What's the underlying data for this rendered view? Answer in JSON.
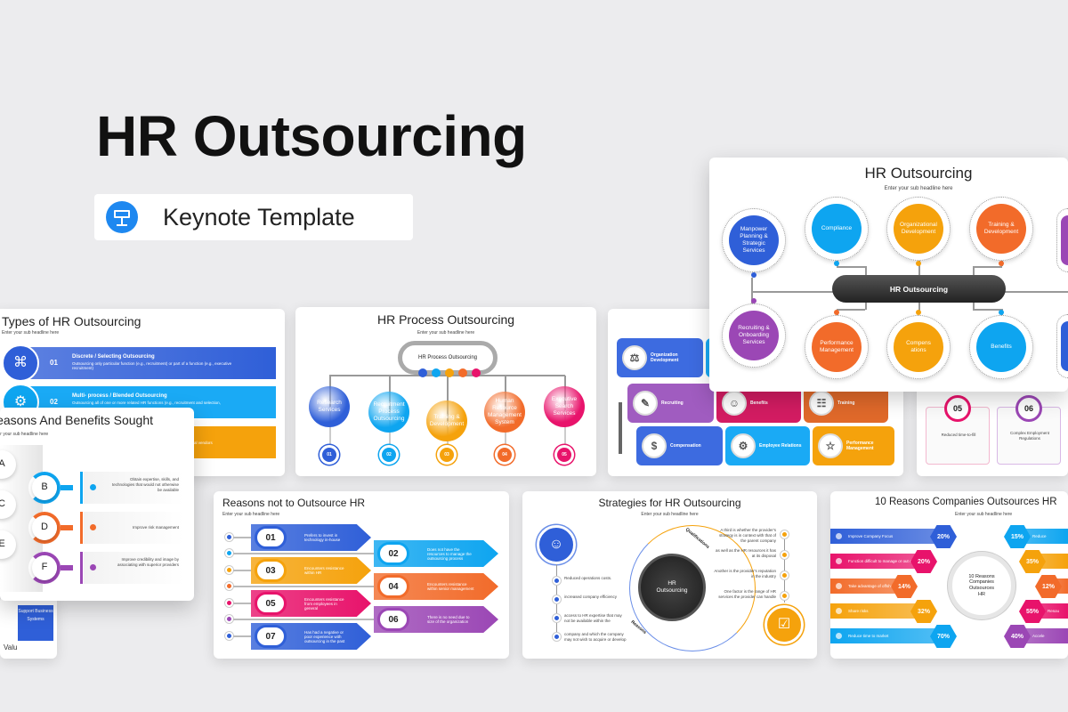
{
  "hero": {
    "title": "HR Outsourcing",
    "badge_label": "Keynote Template",
    "badge_icon": "keynote-podium-icon",
    "badge_color": "#1e88f0"
  },
  "colors": {
    "blue": "#2f5fd8",
    "light_blue": "#0ea5f0",
    "orange": "#f5a20c",
    "deep_orange": "#f26b2a",
    "pink": "#e8136b",
    "purple": "#9b47b5",
    "dark": "#333333"
  },
  "sub_headline": "Enter your sub headline here",
  "main_slide": {
    "title": "HR Outsourcing",
    "center": "HR Outsourcing",
    "top": [
      "Manpower Planning & Strategic Services",
      "Compliance",
      "Organizational Development",
      "Training & Development"
    ],
    "bottom": [
      "Recruiting & Onboarding Services",
      "Performance Management",
      "Compens ations",
      "Benefits"
    ]
  },
  "types_slide": {
    "title": "Types of HR Outsourcing",
    "items": [
      {
        "num": "01",
        "title": "Discrete / Selecting Outsourcing",
        "desc": "Outsourcing only particular function (e.g., recruitment) or part of a function (e.g., executive recruitment)"
      },
      {
        "num": "02",
        "title": "Multi- process / Blended Outsourcing",
        "desc": "Outsourcing all of one or more related HR functions (e.g., recruitment and selection,"
      },
      {
        "desc": "rnal vendors"
      }
    ]
  },
  "benefits_slide": {
    "title": "Reasons And Benefits Sought",
    "letters": [
      "A",
      "C",
      "E"
    ],
    "items": [
      {
        "letter": "B",
        "text": "Obtain expertise, skills, and technologies that would not otherwise be available"
      },
      {
        "letter": "D",
        "text": "Improve risk management"
      },
      {
        "letter": "F",
        "text": "Improve credibility and image by associating with superior providers"
      }
    ]
  },
  "process_slide": {
    "title": "HR Process Outsourcing",
    "center": "HR Process Outsourcing",
    "items": [
      {
        "label": "Research Services",
        "num": "01"
      },
      {
        "label": "Recruitment Process Outsourcing",
        "num": "02"
      },
      {
        "label": "Training & Development",
        "num": "03"
      },
      {
        "label": "Human Resource Management System",
        "num": "04"
      },
      {
        "label": "Executive Search Services",
        "num": "05"
      }
    ]
  },
  "flow_slide": {
    "tiles": [
      "Organization Development",
      "Recruiting",
      "Benefits",
      "Training",
      "Compensation",
      "Employee Relations",
      "Performance Management"
    ]
  },
  "cards_slide": {
    "cards": [
      {
        "num": "05",
        "text": "Reduced time-to-fill"
      },
      {
        "num": "06",
        "text": "Complex Employment Regulations"
      }
    ]
  },
  "partial_slide": {
    "box": "Support Business Systems",
    "vertical": "Valu"
  },
  "reasons_not_slide": {
    "title": "Reasons not to Outsource HR",
    "items": [
      {
        "num": "01",
        "text": "Prefers to invest in technology in-house"
      },
      {
        "num": "02",
        "text": "Does not have the resources to manage the outsourcing process"
      },
      {
        "num": "03",
        "text": "Encounters resistance within HR"
      },
      {
        "num": "04",
        "text": "Encounters resistance within senior management"
      },
      {
        "num": "05",
        "text": "Encounters resistance from employees in general"
      },
      {
        "num": "06",
        "text": "There is no need due to size of the organization"
      },
      {
        "num": "07",
        "text": "Has had a negative or poor experience with outsourcing in the past"
      }
    ]
  },
  "strategies_slide": {
    "title": "Strategies for HR Outsourcing",
    "center": "HR Outsourcing",
    "arc_top": "Qualifications",
    "arc_bottom": "Reasons",
    "left": [
      "Reduced operations costs.",
      "increased company efficiency",
      "access to HR expertise that may not be available within the",
      "company and which the company may not wish to acquire or develop"
    ],
    "right": [
      "A third is whether the provider's strategy is in context with that of the parent company",
      "as well as the HR resources it has at its disposal",
      "Another is the provider's reputation in the industry",
      "One factor is the range of HR services the provider can handle"
    ]
  },
  "ten_reasons_slide": {
    "title": "10 Reasons Companies Outsources HR",
    "center": "10 Reasons Companies Outsources HR",
    "left": [
      {
        "text": "Improve Company Focus",
        "pct": "20%"
      },
      {
        "text": "Function difficult to manage or out of control",
        "pct": "20%"
      },
      {
        "text": "Take advantage of offshore capabilities",
        "pct": "14%"
      },
      {
        "text": "Share risks",
        "pct": "32%"
      },
      {
        "text": "Reduce time to market",
        "pct": "70%"
      }
    ],
    "right": [
      {
        "text": "Reduce",
        "pct": "15%"
      },
      {
        "text": "",
        "pct": "35%"
      },
      {
        "text": "",
        "pct": "12%"
      },
      {
        "text": "Resou",
        "pct": "55%"
      },
      {
        "text": "Accele",
        "pct": "40%"
      }
    ]
  }
}
